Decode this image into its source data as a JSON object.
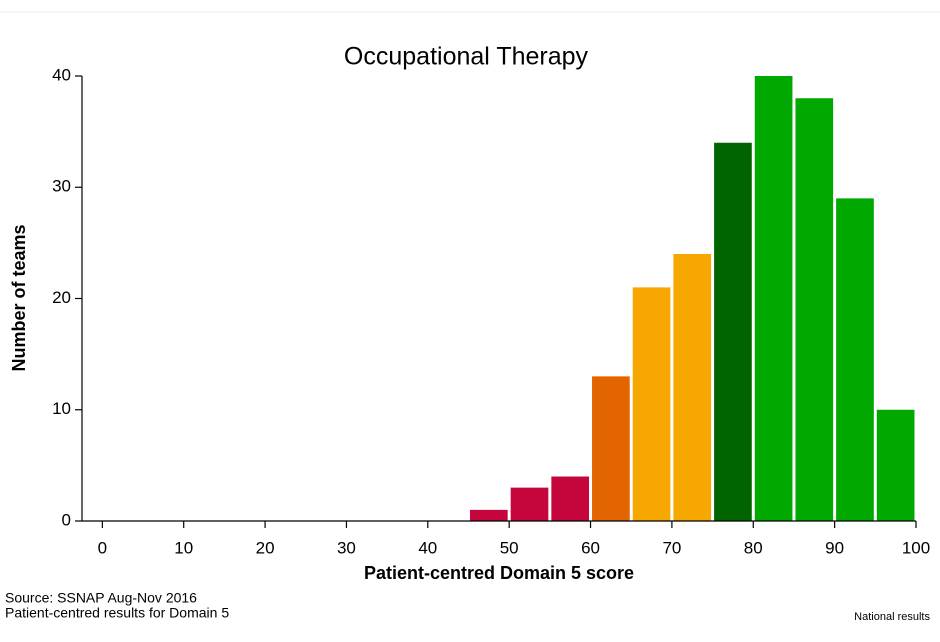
{
  "chart_data": {
    "type": "histogram",
    "title": "Occupational Therapy",
    "xlabel": "Patient-centred Domain 5 score",
    "ylabel": "Number of teams",
    "bins": [
      45,
      50,
      55,
      60,
      65,
      70,
      75,
      80,
      85,
      90,
      95,
      100
    ],
    "values": [
      1,
      3,
      4,
      13,
      21,
      24,
      34,
      40,
      38,
      29,
      10
    ],
    "colors": [
      "#c4063c",
      "#c4063c",
      "#c4063c",
      "#e26502",
      "#f7a800",
      "#f7a800",
      "#006400",
      "#00a800",
      "#00a800",
      "#00a800",
      "#00a800"
    ],
    "xlim": [
      -2.5,
      100
    ],
    "xticks": [
      0,
      10,
      20,
      30,
      40,
      50,
      60,
      70,
      80,
      90,
      100
    ],
    "ylim": [
      0,
      40
    ],
    "yticks": [
      0,
      10,
      20,
      30,
      40
    ],
    "notes": [
      "Source: SSNAP Aug-Nov 2016",
      "Patient-centred results for Domain 5"
    ],
    "footer_right": "National results"
  }
}
